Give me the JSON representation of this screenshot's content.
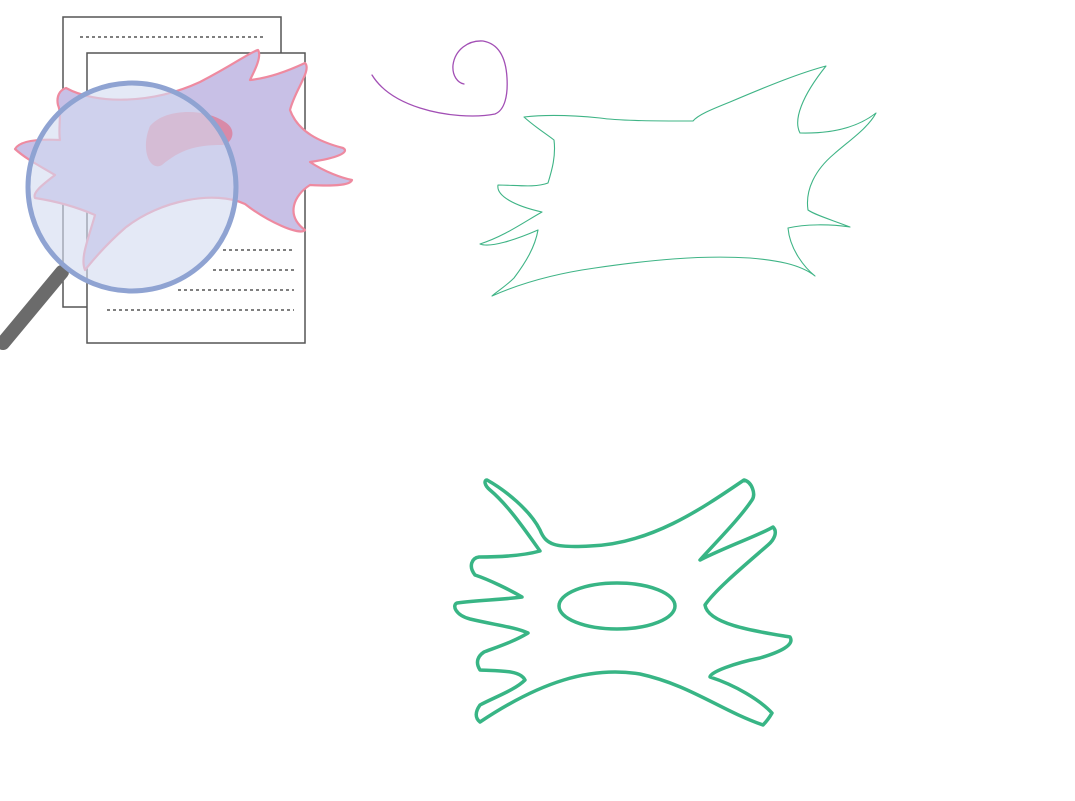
{
  "canvas": {
    "background": "#ffffff"
  },
  "icons": {
    "document_magnifier": "document-magnifier-icon",
    "cell": "cell-icon",
    "magnifying_glass": "magnifying-glass-icon",
    "document": "document-icon"
  },
  "colors": {
    "paper_stroke": "#555555",
    "paper_fill": "#ffffff",
    "dotted_lines": "#333333",
    "cell_fill": "#c8c0e6",
    "cell_stroke": "#ee8aa0",
    "nucleus_fill": "#d88aa8",
    "lens_fill": "#d3dcf0",
    "lens_ring": "#8fa3d2",
    "magnifier_handle": "#6b6b6b",
    "purple_squiggle": "#a24fb5",
    "thin_green_stroke": "#3fb486",
    "thick_green_stroke": "#38b585"
  }
}
